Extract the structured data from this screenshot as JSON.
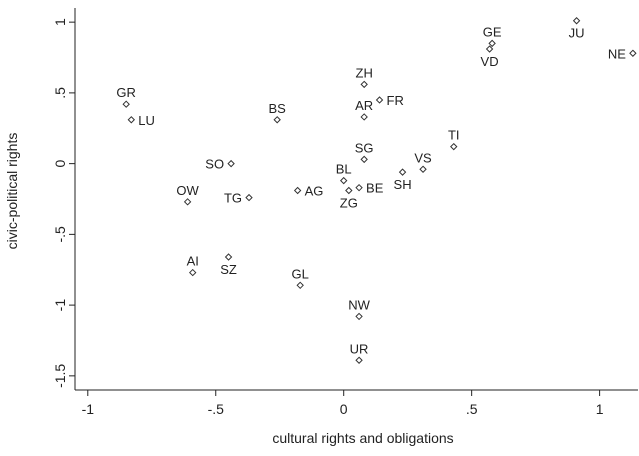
{
  "chart_data": {
    "type": "scatter",
    "xlabel": "cultural rights and obligations",
    "ylabel": "civic-political rights",
    "xlim": [
      -1.05,
      1.15
    ],
    "ylim": [
      -1.6,
      1.1
    ],
    "x_ticks": [
      {
        "value": -1,
        "label": "-1"
      },
      {
        "value": -0.5,
        "label": "-.5"
      },
      {
        "value": 0,
        "label": "0"
      },
      {
        "value": 0.5,
        "label": ".5"
      },
      {
        "value": 1,
        "label": "1"
      }
    ],
    "y_ticks": [
      {
        "value": -1.5,
        "label": "-1.5"
      },
      {
        "value": -1,
        "label": "-1"
      },
      {
        "value": -0.5,
        "label": "-.5"
      },
      {
        "value": 0,
        "label": "0"
      },
      {
        "value": 0.5,
        "label": ".5"
      },
      {
        "value": 1,
        "label": "1"
      }
    ],
    "grid": false,
    "marker": "hollow-diamond",
    "points": [
      {
        "label": "JU",
        "x": 0.91,
        "y": 1.01,
        "pos": "below"
      },
      {
        "label": "NE",
        "x": 1.13,
        "y": 0.78,
        "pos": "left"
      },
      {
        "label": "GE",
        "x": 0.58,
        "y": 0.85,
        "pos": "above"
      },
      {
        "label": "VD",
        "x": 0.57,
        "y": 0.81,
        "pos": "below"
      },
      {
        "label": "GR",
        "x": -0.85,
        "y": 0.42,
        "pos": "above"
      },
      {
        "label": "LU",
        "x": -0.83,
        "y": 0.31,
        "pos": "right"
      },
      {
        "label": "BS",
        "x": -0.26,
        "y": 0.31,
        "pos": "above"
      },
      {
        "label": "ZH",
        "x": 0.08,
        "y": 0.56,
        "pos": "above"
      },
      {
        "label": "FR",
        "x": 0.14,
        "y": 0.45,
        "pos": "right"
      },
      {
        "label": "AR",
        "x": 0.08,
        "y": 0.33,
        "pos": "above"
      },
      {
        "label": "TI",
        "x": 0.43,
        "y": 0.12,
        "pos": "above"
      },
      {
        "label": "SG",
        "x": 0.08,
        "y": 0.03,
        "pos": "above"
      },
      {
        "label": "SO",
        "x": -0.44,
        "y": 0.0,
        "pos": "left"
      },
      {
        "label": "VS",
        "x": 0.31,
        "y": -0.04,
        "pos": "above"
      },
      {
        "label": "SH",
        "x": 0.23,
        "y": -0.06,
        "pos": "below"
      },
      {
        "label": "BL",
        "x": 0.0,
        "y": -0.12,
        "pos": "above"
      },
      {
        "label": "BE",
        "x": 0.06,
        "y": -0.17,
        "pos": "right"
      },
      {
        "label": "ZG",
        "x": 0.02,
        "y": -0.19,
        "pos": "below"
      },
      {
        "label": "AG",
        "x": -0.18,
        "y": -0.19,
        "pos": "right"
      },
      {
        "label": "TG",
        "x": -0.37,
        "y": -0.24,
        "pos": "left"
      },
      {
        "label": "OW",
        "x": -0.61,
        "y": -0.27,
        "pos": "above"
      },
      {
        "label": "AI",
        "x": -0.59,
        "y": -0.77,
        "pos": "above"
      },
      {
        "label": "SZ",
        "x": -0.45,
        "y": -0.66,
        "pos": "below"
      },
      {
        "label": "GL",
        "x": -0.17,
        "y": -0.86,
        "pos": "above"
      },
      {
        "label": "NW",
        "x": 0.06,
        "y": -1.08,
        "pos": "above"
      },
      {
        "label": "UR",
        "x": 0.06,
        "y": -1.39,
        "pos": "above"
      }
    ]
  }
}
